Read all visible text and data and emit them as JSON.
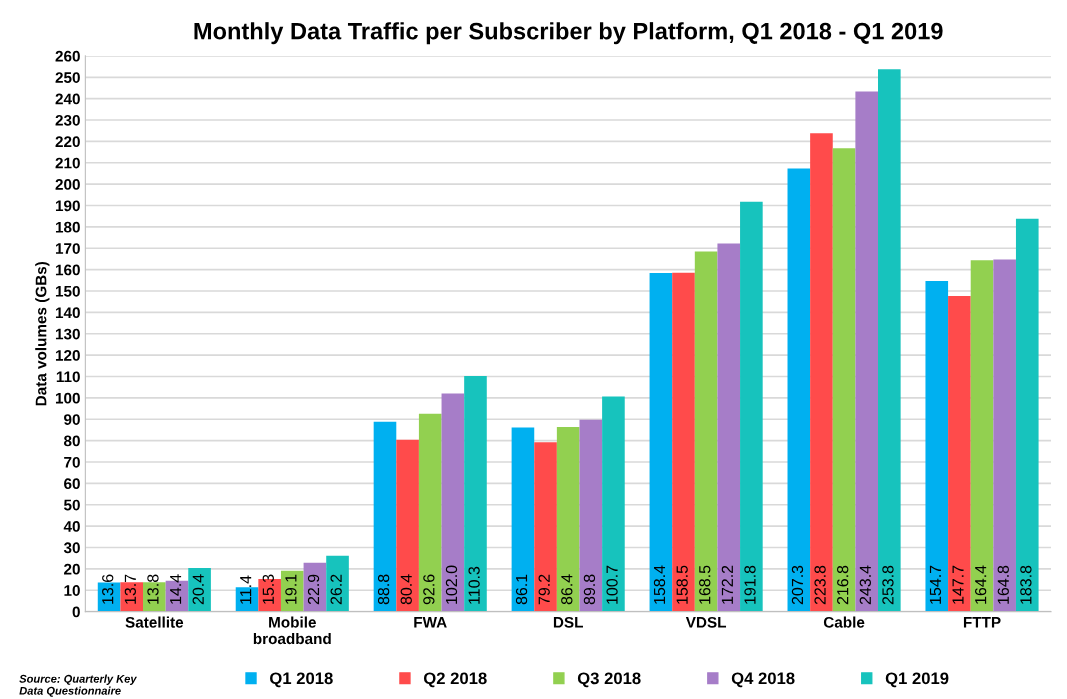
{
  "chart_data": {
    "type": "bar",
    "title": "Monthly Data Traffic per Subscriber by Platform, Q1 2018 - Q1 2019",
    "ylabel": "Data volumes (GBs)",
    "categories": [
      "Satellite",
      "Mobile\nbroadband",
      "FWA",
      "DSL",
      "VDSL",
      "Cable",
      "FTTP"
    ],
    "series": [
      {
        "name": "Q1 2018",
        "color": "#00b0f0",
        "values": [
          13.6,
          11.4,
          88.8,
          86.1,
          158.4,
          207.3,
          154.7
        ],
        "value_labels": [
          "13.6",
          "11.4",
          "88.8",
          "86.1",
          "158.4",
          "207.3",
          "154.7"
        ]
      },
      {
        "name": "Q2 2018",
        "color": "#ff4b4b",
        "values": [
          13.7,
          15.3,
          80.4,
          79.2,
          158.5,
          223.8,
          147.7
        ],
        "value_labels": [
          "13.7",
          "15.3",
          "80.4",
          "79.2",
          "158.5",
          "223.8",
          "147.7"
        ]
      },
      {
        "name": "Q3 2018",
        "color": "#92d050",
        "values": [
          13.8,
          19.1,
          92.6,
          86.4,
          168.5,
          216.8,
          164.4
        ],
        "value_labels": [
          "13.8",
          "19.1",
          "92.6",
          "86.4",
          "168.5",
          "216.8",
          "164.4"
        ]
      },
      {
        "name": "Q4 2018",
        "color": "#a67dc8",
        "values": [
          14.4,
          22.9,
          102.0,
          89.8,
          172.2,
          243.4,
          164.8
        ],
        "value_labels": [
          "14.4",
          "22.9",
          "102.0",
          "89.8",
          "172.2",
          "243.4",
          "164.8"
        ]
      },
      {
        "name": "Q1 2019",
        "color": "#17c3bd",
        "values": [
          20.4,
          26.2,
          110.3,
          100.7,
          191.8,
          253.8,
          183.8
        ],
        "value_labels": [
          "20.4",
          "26.2",
          "110.3",
          "100.7",
          "191.8",
          "253.8",
          "183.8"
        ]
      }
    ],
    "ylim": [
      0,
      260
    ],
    "yticks": [
      0,
      10,
      20,
      30,
      40,
      50,
      60,
      70,
      80,
      90,
      100,
      110,
      120,
      130,
      140,
      150,
      160,
      170,
      180,
      190,
      200,
      210,
      220,
      230,
      240,
      250,
      260
    ],
    "grid": "y",
    "legend": "bottom",
    "annotations": [
      "Source: Quarterly Key\nData Questionnaire"
    ]
  }
}
